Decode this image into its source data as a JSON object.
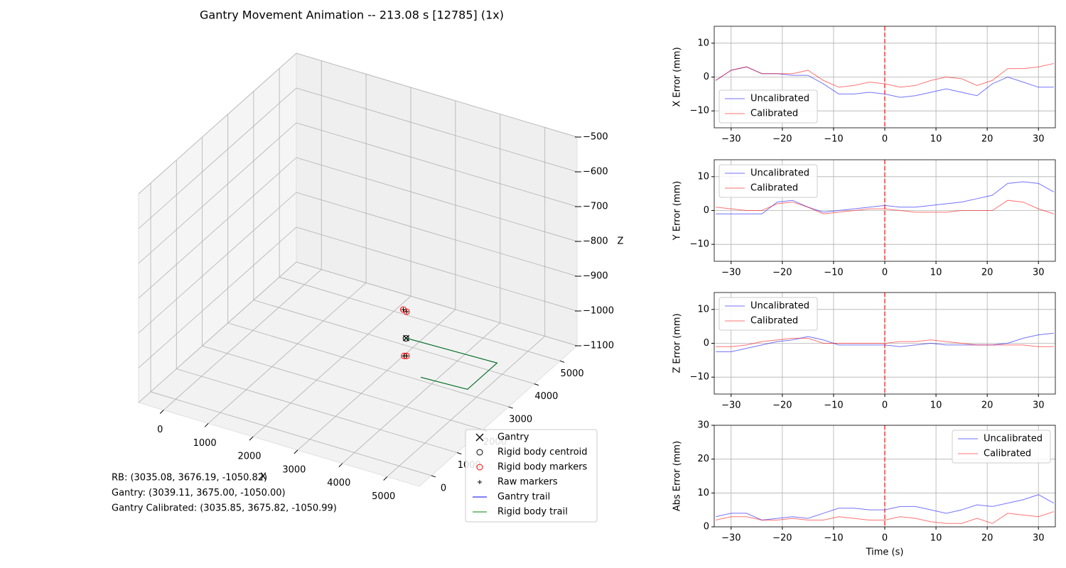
{
  "chart_data": [
    {
      "type": "scatter3d",
      "title": "Gantry Movement Animation -- 213.08 s [12785] (1x)",
      "xlabel": "X",
      "zlabel": "Z",
      "xlim": [
        -560,
        5720
      ],
      "ylim": [
        -470,
        5660
      ],
      "zlim": [
        -1100,
        -500
      ],
      "xticks": [
        0,
        1000,
        2000,
        3000,
        4000,
        5000
      ],
      "yticks": [
        0,
        1000,
        2000,
        3000,
        4000,
        5000
      ],
      "zticks": [
        {
          "value": -500,
          "label": "−500"
        },
        {
          "value": -600,
          "label": "−600"
        },
        {
          "value": -700,
          "label": "−700"
        },
        {
          "value": -800,
          "label": "−800"
        },
        {
          "value": -900,
          "label": "−900"
        },
        {
          "value": -1000,
          "label": "−1000"
        },
        {
          "value": -1100,
          "label": "−1100"
        }
      ],
      "grid": true,
      "series": [
        {
          "name": "Gantry",
          "marker": "x",
          "color": "#000000",
          "x": [
            3039.11
          ],
          "y": [
            3675.0
          ],
          "z": [
            -1050.0
          ]
        },
        {
          "name": "Rigid body centroid",
          "marker": "o",
          "color": "#000000",
          "x": [
            3035.08
          ],
          "y": [
            3676.19
          ],
          "z": [
            -1050.82
          ]
        },
        {
          "name": "Rigid body markers",
          "marker": "o",
          "color": "#ff0000",
          "x": [
            3040,
            2990,
            3340,
            3380
          ],
          "y": [
            3690,
            3650,
            3075,
            3100
          ],
          "z": [
            -975,
            -968,
            -1050,
            -1050
          ]
        },
        {
          "name": "Raw markers",
          "marker": "+",
          "color": "#000000",
          "x": [
            3040,
            2990,
            3340,
            3380
          ],
          "y": [
            3690,
            3650,
            3075,
            3100
          ],
          "z": [
            -975,
            -968,
            -1050,
            -1050
          ]
        },
        {
          "name": "Gantry trail",
          "marker": "line",
          "color": "#0000ff",
          "x": [
            3039,
            5030,
            5030,
            4020
          ],
          "y": [
            3675,
            3750,
            2600,
            2540
          ],
          "z": [
            -1050,
            -1050,
            -1050,
            -1050
          ]
        },
        {
          "name": "Rigid body trail",
          "marker": "line",
          "color": "#008000",
          "x": [
            3035,
            5030,
            5030,
            4020
          ],
          "y": [
            3676,
            3750,
            2600,
            2540
          ],
          "z": [
            -1050,
            -1050,
            -1050,
            -1050
          ]
        }
      ],
      "legend": "lower right",
      "annotations": [
        "RB: (3035.08, 3676.19, -1050.82)",
        "Gantry: (3039.11, 3675.00, -1050.00)",
        "Gantry Calibrated: (3035.85, 3675.82, -1050.99)"
      ]
    },
    {
      "type": "line",
      "ylabel": "X Error (mm)",
      "x": [
        -33,
        -30,
        -27,
        -24,
        -21,
        -18,
        -15,
        -12,
        -9,
        -6,
        -3,
        0,
        3,
        6,
        9,
        12,
        15,
        18,
        21,
        24,
        27,
        30,
        33
      ],
      "series": [
        {
          "name": "Uncalibrated",
          "color": "#0000ff",
          "values": [
            -1,
            2,
            3,
            1,
            1,
            0.5,
            0.5,
            -2,
            -5,
            -5,
            -4.5,
            -5,
            -6,
            -5.5,
            -4.5,
            -3.5,
            -4.5,
            -5.5,
            -2,
            0,
            -1.5,
            -3,
            -3
          ]
        },
        {
          "name": "Calibrated",
          "color": "#ff0000",
          "values": [
            -1,
            2,
            3,
            1,
            1,
            1,
            2,
            -1,
            -3,
            -2.5,
            -1.5,
            -2,
            -3,
            -2.5,
            -1,
            0,
            -0.5,
            -2.5,
            -1,
            2.5,
            2.5,
            3,
            4
          ]
        }
      ],
      "xlim": [
        -33.3,
        33.3
      ],
      "ylim": [
        -15,
        15
      ],
      "xticks": [
        {
          "value": -30,
          "label": "−30"
        },
        {
          "value": -20,
          "label": "−20"
        },
        {
          "value": -10,
          "label": "−10"
        },
        0,
        10,
        20,
        30
      ],
      "yticks": [
        {
          "value": -10,
          "label": "−10"
        },
        0,
        10
      ],
      "vline": 0,
      "vline_color": "#ff0000",
      "grid": true,
      "legend": "lower left"
    },
    {
      "type": "line",
      "ylabel": "Y Error (mm)",
      "x": [
        -33,
        -30,
        -27,
        -24,
        -21,
        -18,
        -15,
        -12,
        -9,
        -6,
        -3,
        0,
        3,
        6,
        9,
        12,
        15,
        18,
        21,
        24,
        27,
        30,
        33
      ],
      "series": [
        {
          "name": "Uncalibrated",
          "color": "#0000ff",
          "values": [
            -1,
            -1,
            -1,
            -1,
            2.5,
            3,
            1,
            -0.5,
            0,
            0.5,
            1,
            1.5,
            1,
            1,
            1.5,
            2,
            2.5,
            3.5,
            4.5,
            8,
            8.5,
            8,
            5.5
          ]
        },
        {
          "name": "Calibrated",
          "color": "#ff0000",
          "values": [
            1,
            0.5,
            0,
            0,
            2,
            2.5,
            1,
            -1,
            -0.5,
            0,
            0.5,
            0.5,
            0,
            -0.5,
            -0.5,
            -0.5,
            0,
            0,
            0,
            3,
            2.5,
            0.5,
            -1
          ]
        }
      ],
      "xlim": [
        -33.3,
        33.3
      ],
      "ylim": [
        -15,
        15
      ],
      "xticks": [
        {
          "value": -30,
          "label": "−30"
        },
        {
          "value": -20,
          "label": "−20"
        },
        {
          "value": -10,
          "label": "−10"
        },
        0,
        10,
        20,
        30
      ],
      "yticks": [
        {
          "value": -10,
          "label": "−10"
        },
        0,
        10
      ],
      "vline": 0,
      "vline_color": "#ff0000",
      "grid": true,
      "legend": "upper left"
    },
    {
      "type": "line",
      "ylabel": "Z Error (mm)",
      "x": [
        -33,
        -30,
        -27,
        -24,
        -21,
        -18,
        -15,
        -12,
        -9,
        -6,
        -3,
        0,
        3,
        6,
        9,
        12,
        15,
        18,
        21,
        24,
        27,
        30,
        33
      ],
      "series": [
        {
          "name": "Uncalibrated",
          "color": "#0000ff",
          "values": [
            -2.5,
            -2.5,
            -1.5,
            -0.5,
            0.5,
            1,
            2,
            1,
            -0.5,
            -0.5,
            -0.5,
            -0.5,
            -1,
            -0.5,
            0,
            -0.5,
            -0.5,
            -0.5,
            -0.5,
            0,
            1.5,
            2.5,
            3
          ]
        },
        {
          "name": "Calibrated",
          "color": "#ff0000",
          "values": [
            -1,
            -1,
            -0.5,
            0.5,
            1,
            1.5,
            1.5,
            0,
            0,
            0,
            0,
            0,
            0.5,
            0.5,
            1,
            0.5,
            0,
            -0.5,
            -0.5,
            -0.5,
            -0.5,
            -1,
            -1
          ]
        }
      ],
      "xlim": [
        -33.3,
        33.3
      ],
      "ylim": [
        -15,
        15
      ],
      "xticks": [
        {
          "value": -30,
          "label": "−30"
        },
        {
          "value": -20,
          "label": "−20"
        },
        {
          "value": -10,
          "label": "−10"
        },
        0,
        10,
        20,
        30
      ],
      "yticks": [
        {
          "value": -10,
          "label": "−10"
        },
        0,
        10
      ],
      "vline": 0,
      "vline_color": "#ff0000",
      "grid": true,
      "legend": "upper left"
    },
    {
      "type": "line",
      "ylabel": "Abs Error (mm)",
      "xlabel": "Time (s)",
      "x": [
        -33,
        -30,
        -27,
        -24,
        -21,
        -18,
        -15,
        -12,
        -9,
        -6,
        -3,
        0,
        3,
        6,
        9,
        12,
        15,
        18,
        21,
        24,
        27,
        30,
        33
      ],
      "series": [
        {
          "name": "Uncalibrated",
          "color": "#0000ff",
          "values": [
            3,
            4,
            4,
            2,
            2.5,
            3,
            2.5,
            4,
            5.5,
            5.5,
            5,
            5,
            6,
            6,
            5,
            4,
            5,
            6.5,
            6,
            7,
            8,
            9.5,
            7
          ]
        },
        {
          "name": "Calibrated",
          "color": "#ff0000",
          "values": [
            2,
            3,
            3,
            2,
            2,
            2.5,
            2,
            2,
            3,
            2.5,
            2,
            2,
            3,
            2.5,
            1.5,
            1,
            1,
            2.5,
            1,
            4,
            3.5,
            3,
            4.5
          ]
        }
      ],
      "xlim": [
        -33.3,
        33.3
      ],
      "ylim": [
        0,
        30
      ],
      "xticks": [
        {
          "value": -30,
          "label": "−30"
        },
        {
          "value": -20,
          "label": "−20"
        },
        {
          "value": -10,
          "label": "−10"
        },
        0,
        10,
        20,
        30
      ],
      "yticks": [
        0,
        10,
        20,
        30
      ],
      "vline": 0,
      "vline_color": "#ff0000",
      "grid": true,
      "legend": "upper right"
    }
  ]
}
